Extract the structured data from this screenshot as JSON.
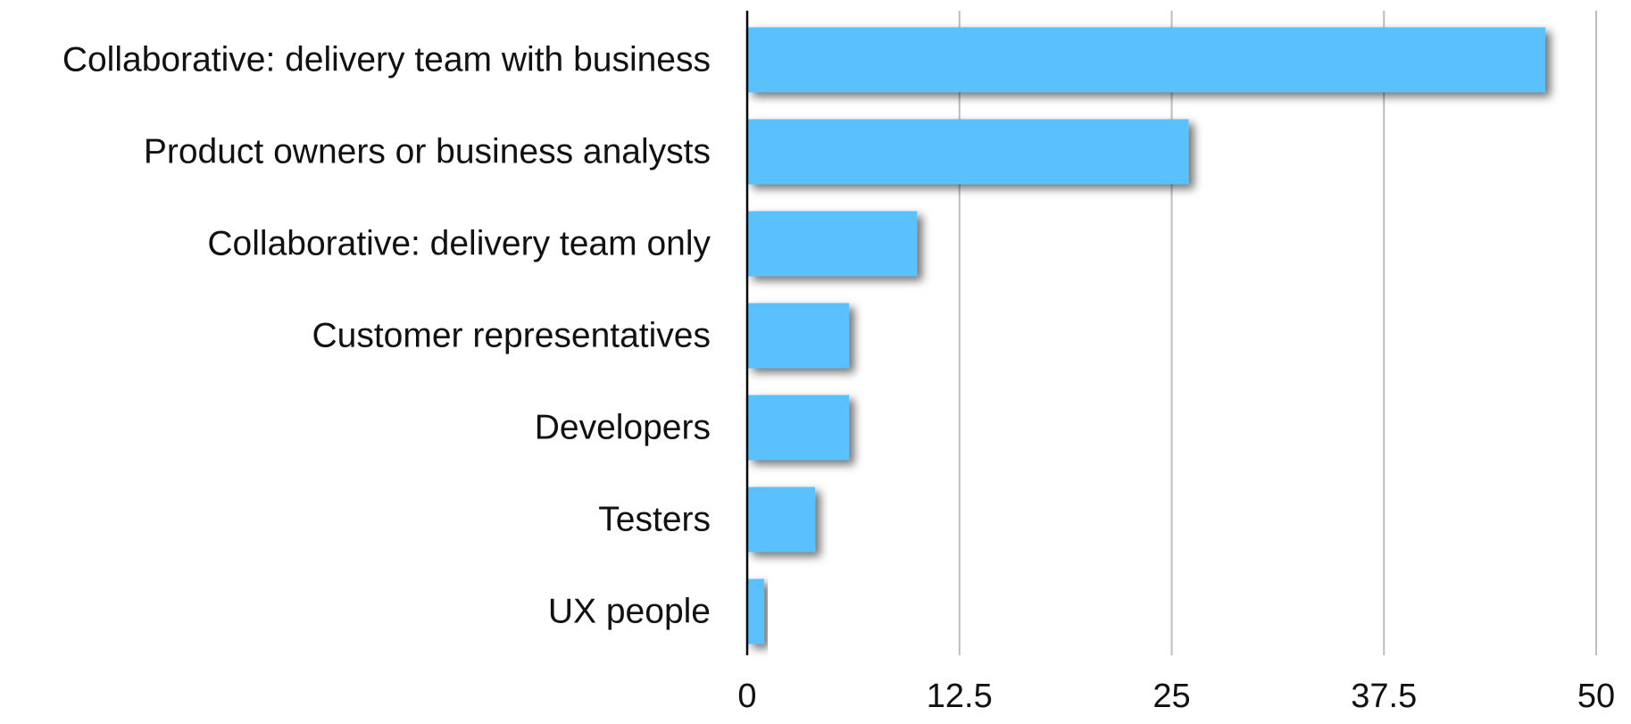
{
  "chart_data": {
    "type": "bar",
    "orientation": "horizontal",
    "categories": [
      "Collaborative: delivery team with business",
      "Product owners or business analysts",
      "Collaborative: delivery team only",
      "Customer representatives",
      "Developers",
      "Testers",
      "UX people"
    ],
    "values": [
      47,
      26,
      10,
      6,
      6,
      4,
      1
    ],
    "xlim": [
      0,
      50
    ],
    "xticks": [
      0,
      12.5,
      25,
      37.5,
      50
    ],
    "xtick_labels": [
      "0",
      "12.5",
      "25",
      "37.5",
      "50"
    ],
    "grid": true,
    "legend": "none",
    "bar_color": "#5ac1fc",
    "grid_color": "#bdbdbd",
    "axis_color": "#000000"
  }
}
